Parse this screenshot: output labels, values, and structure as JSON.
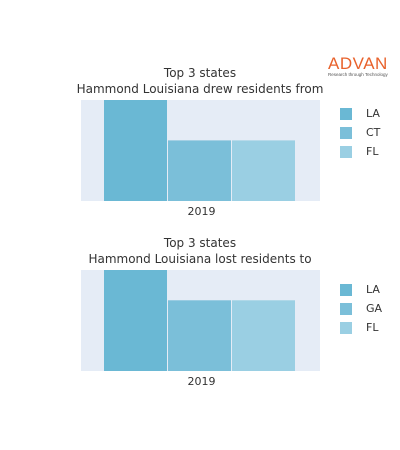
{
  "logo": {
    "name": "ADVAN",
    "tagline": "Research through Technology"
  },
  "colors": {
    "plot_bg": "#e5ecf6",
    "series": [
      "#6ab8d4",
      "#7bbfd9",
      "#9acfe3"
    ],
    "logo": "#e8622c"
  },
  "chart_data": [
    {
      "type": "bar",
      "title": "Top 3 states",
      "subtitle": "Hammond Louisiana drew residents from",
      "categories": [
        "2019"
      ],
      "series": [
        {
          "name": "LA",
          "values": [
            1.0
          ]
        },
        {
          "name": "CT",
          "values": [
            0.6
          ]
        },
        {
          "name": "FL",
          "values": [
            0.6
          ]
        }
      ],
      "ylim": [
        0,
        1.0
      ],
      "grid": false,
      "legend": "right"
    },
    {
      "type": "bar",
      "title": "Top 3 states",
      "subtitle": "Hammond Louisiana lost residents to",
      "categories": [
        "2019"
      ],
      "series": [
        {
          "name": "LA",
          "values": [
            1.0
          ]
        },
        {
          "name": "GA",
          "values": [
            0.7
          ]
        },
        {
          "name": "FL",
          "values": [
            0.7
          ]
        }
      ],
      "ylim": [
        0,
        1.0
      ],
      "grid": false,
      "legend": "right"
    }
  ]
}
